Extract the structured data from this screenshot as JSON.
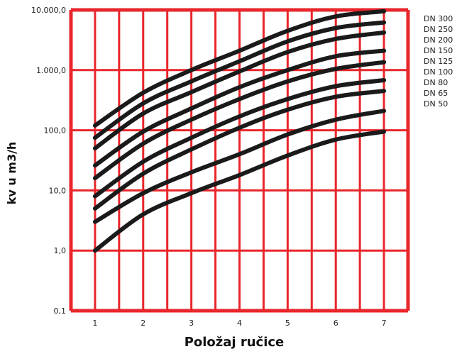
{
  "chart_data": {
    "type": "line",
    "title": "",
    "xlabel": "Položaj ručice",
    "ylabel": "kv u m3/h",
    "x": [
      1,
      2,
      3,
      4,
      5,
      6,
      7
    ],
    "x_tick_labels": [
      "1",
      "2",
      "3",
      "4",
      "5",
      "6",
      "7"
    ],
    "y_scale": "log",
    "ylim": [
      0.1,
      10000
    ],
    "y_ticks": [
      0.1,
      1,
      10,
      100,
      1000,
      10000
    ],
    "y_tick_labels": [
      "0,1",
      "1,0",
      "10,0",
      "100,0",
      "1.000,0",
      "10.000,0"
    ],
    "grid": true,
    "colors": {
      "grid": "#e8262b",
      "line": "#1a1a1a",
      "background": "#ffffff"
    },
    "legend_position": "right",
    "series": [
      {
        "name": "DN 300",
        "values": [
          120,
          420,
          1000,
          2100,
          4500,
          7800,
          9500
        ]
      },
      {
        "name": "DN 250",
        "values": [
          75,
          280,
          650,
          1400,
          3000,
          5000,
          6200
        ]
      },
      {
        "name": "DN 200",
        "values": [
          50,
          190,
          430,
          950,
          2000,
          3300,
          4200
        ]
      },
      {
        "name": "DN 150",
        "values": [
          26,
          95,
          230,
          520,
          1000,
          1700,
          2100
        ]
      },
      {
        "name": "DN 125",
        "values": [
          16,
          60,
          150,
          330,
          650,
          1050,
          1350
        ]
      },
      {
        "name": "DN 100",
        "values": [
          8,
          30,
          75,
          170,
          330,
          540,
          680
        ]
      },
      {
        "name": "DN 80",
        "values": [
          5,
          19,
          48,
          110,
          220,
          360,
          450
        ]
      },
      {
        "name": "DN 65",
        "values": [
          3,
          9,
          20,
          40,
          85,
          150,
          210
        ]
      },
      {
        "name": "DN 50",
        "values": [
          1,
          4,
          9,
          18,
          38,
          70,
          95
        ]
      }
    ]
  }
}
